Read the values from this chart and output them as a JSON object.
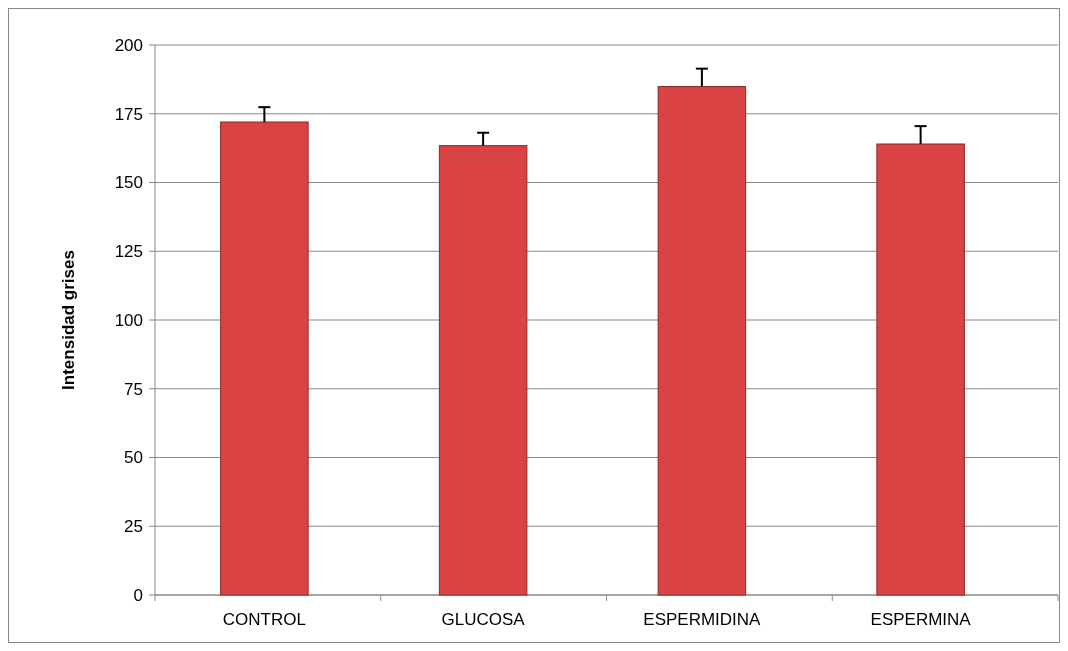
{
  "chart_data": {
    "type": "bar",
    "ylabel": "Intensidad grises",
    "categories": [
      "CONTROL",
      "GLUCOSA",
      "ESPERMIDINA",
      "ESPERMINA"
    ],
    "values": [
      172,
      163.4,
      184.9,
      164
    ],
    "errors": [
      [
        172,
        177.4
      ],
      [
        163.4,
        168.1
      ],
      [
        184.9,
        191.4
      ],
      [
        164,
        170.5
      ]
    ],
    "color": "#d94343",
    "ylim": [
      0,
      200
    ],
    "yticks": [
      0,
      25,
      50,
      75,
      100,
      125,
      150,
      175,
      200
    ],
    "grid": "y"
  }
}
